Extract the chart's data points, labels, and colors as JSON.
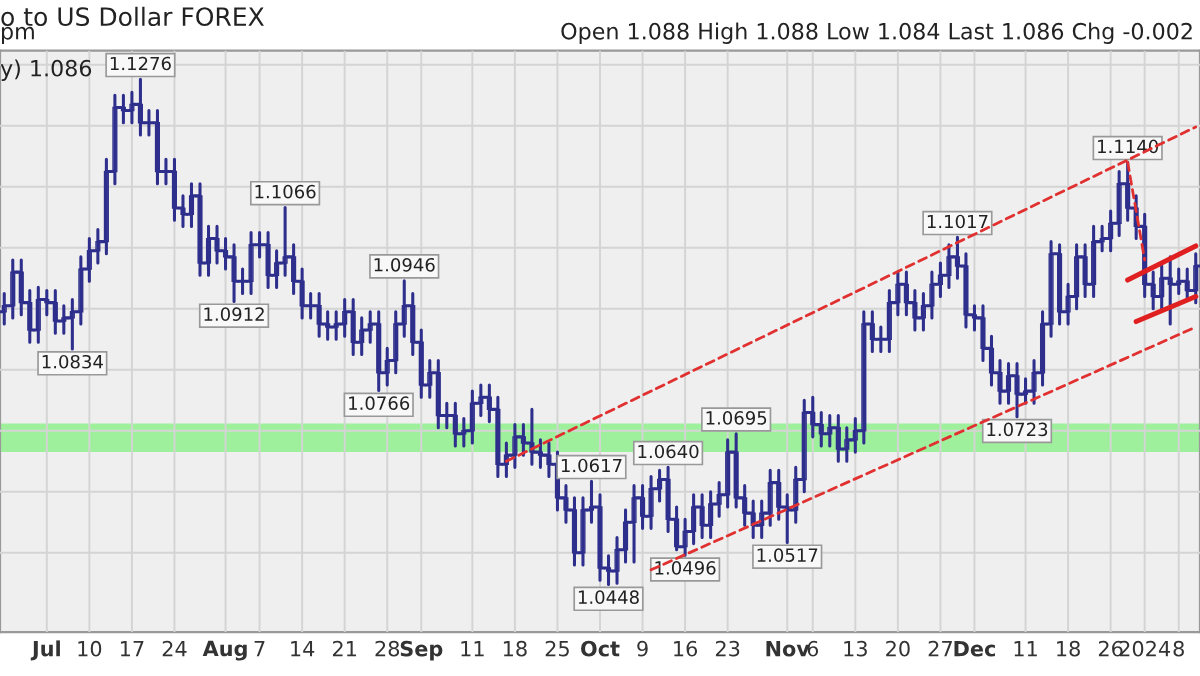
{
  "chart_data": {
    "type": "candlestick",
    "title": "o to US Dollar FOREX",
    "subtitle": "Open 1.088 High 1.088 Low 1.084 Last 1.086 Chg -0.002",
    "annotations": [
      "pm",
      "y) 1.086",
      {
        "text": "1.1276",
        "y": 1.1276
      },
      {
        "text": "1.0834",
        "y": 1.0834
      },
      {
        "text": "1.1066",
        "y": 1.1066
      },
      {
        "text": "1.0912",
        "y": 1.0912
      },
      {
        "text": "1.0946",
        "y": 1.0946
      },
      {
        "text": "1.0766",
        "y": 1.0766
      },
      {
        "text": "1.0617",
        "y": 1.0617
      },
      {
        "text": "1.0448",
        "y": 1.0448
      },
      {
        "text": "1.0640",
        "y": 1.064
      },
      {
        "text": "1.0496",
        "y": 1.0496
      },
      {
        "text": "1.0695",
        "y": 1.0695
      },
      {
        "text": "1.0517",
        "y": 1.0517
      },
      {
        "text": "1.1017",
        "y": 1.1017
      },
      {
        "text": "1.0723",
        "y": 1.0723
      },
      {
        "text": "1.1140",
        "y": 1.114
      }
    ],
    "color": "#2e2e8c",
    "categories": [
      null,
      null,
      null,
      null,
      null,
      "Jul",
      null,
      null,
      null,
      null,
      "10",
      null,
      null,
      null,
      null,
      "17",
      null,
      null,
      null,
      null,
      "24",
      null,
      null,
      null,
      null,
      null,
      "Aug",
      null,
      null,
      null,
      "7",
      null,
      null,
      null,
      null,
      "14",
      null,
      null,
      null,
      null,
      "21",
      null,
      null,
      null,
      null,
      "28",
      null,
      null,
      null,
      "Sep",
      null,
      null,
      null,
      null,
      null,
      "11",
      null,
      null,
      null,
      null,
      "18",
      null,
      null,
      null,
      null,
      "25",
      null,
      null,
      null,
      null,
      "Oct",
      null,
      null,
      null,
      null,
      "9",
      null,
      null,
      null,
      null,
      "16",
      null,
      null,
      null,
      null,
      "23",
      null,
      null,
      null,
      null,
      null,
      null,
      "Nov",
      null,
      null,
      "6",
      null,
      null,
      null,
      null,
      "13",
      null,
      null,
      null,
      null,
      "20",
      null,
      null,
      null,
      null,
      "27",
      null,
      null,
      null,
      "Dec",
      null,
      null,
      null,
      null,
      null,
      "11",
      null,
      null,
      null,
      null,
      "18",
      null,
      null,
      null,
      null,
      "26",
      null,
      null,
      null,
      "2024",
      null,
      null,
      null,
      "8",
      null,
      null
    ],
    "ohlc": [
      [
        1.0895,
        1.0925,
        1.0875,
        1.0905
      ],
      [
        1.0905,
        1.098,
        1.0885,
        1.096
      ],
      [
        1.096,
        1.098,
        1.089,
        1.091
      ],
      [
        1.091,
        1.093,
        1.0845,
        1.0865
      ],
      [
        1.0865,
        1.0935,
        1.0845,
        1.0915
      ],
      [
        1.0915,
        1.093,
        1.089,
        1.091
      ],
      [
        1.091,
        1.093,
        1.086,
        1.088
      ],
      [
        1.088,
        1.0905,
        1.086,
        1.0885
      ],
      [
        1.0885,
        1.0915,
        1.0834,
        1.0895
      ],
      [
        1.0895,
        1.0985,
        1.0875,
        1.0965
      ],
      [
        1.0965,
        1.1015,
        1.0945,
        1.0995
      ],
      [
        1.0995,
        1.103,
        1.0975,
        1.101
      ],
      [
        1.101,
        1.1145,
        1.099,
        1.1125
      ],
      [
        1.1125,
        1.125,
        1.1105,
        1.123
      ],
      [
        1.123,
        1.125,
        1.1205,
        1.1225
      ],
      [
        1.1225,
        1.1255,
        1.1205,
        1.1235
      ],
      [
        1.1235,
        1.1276,
        1.1185,
        1.1205
      ],
      [
        1.1205,
        1.1225,
        1.1185,
        1.1205
      ],
      [
        1.1205,
        1.1225,
        1.1105,
        1.1125
      ],
      [
        1.1125,
        1.1145,
        1.1105,
        1.1125
      ],
      [
        1.1125,
        1.1145,
        1.1045,
        1.1065
      ],
      [
        1.1065,
        1.1085,
        1.1035,
        1.1055
      ],
      [
        1.1055,
        1.1105,
        1.1035,
        1.1085
      ],
      [
        1.1085,
        1.1105,
        1.0955,
        1.0975
      ],
      [
        1.0975,
        1.1035,
        1.0955,
        1.1015
      ],
      [
        1.1015,
        1.1035,
        1.0975,
        1.0995
      ],
      [
        1.0995,
        1.1015,
        1.0965,
        1.0985
      ],
      [
        1.0985,
        1.1005,
        1.0912,
        1.0945
      ],
      [
        1.0945,
        1.0965,
        1.0925,
        1.0945
      ],
      [
        1.0945,
        1.1025,
        1.0925,
        1.1005
      ],
      [
        1.1005,
        1.1025,
        1.0985,
        1.1005
      ],
      [
        1.1005,
        1.1025,
        1.0935,
        1.0955
      ],
      [
        1.0955,
        1.0995,
        1.0935,
        1.0975
      ],
      [
        1.0975,
        1.1066,
        1.0955,
        1.0985
      ],
      [
        1.0985,
        1.1005,
        1.0925,
        1.0945
      ],
      [
        1.0945,
        1.0965,
        1.0885,
        1.0905
      ],
      [
        1.0905,
        1.0925,
        1.0885,
        1.0905
      ],
      [
        1.0905,
        1.0925,
        1.0855,
        1.0875
      ],
      [
        1.0875,
        1.0895,
        1.085,
        1.087
      ],
      [
        1.087,
        1.0895,
        1.085,
        1.0875
      ],
      [
        1.0875,
        1.0915,
        1.0855,
        1.0895
      ],
      [
        1.0895,
        1.0915,
        1.0825,
        1.0845
      ],
      [
        1.0845,
        1.0885,
        1.0825,
        1.0865
      ],
      [
        1.0865,
        1.0895,
        1.0845,
        1.0875
      ],
      [
        1.0875,
        1.0895,
        1.0766,
        1.0795
      ],
      [
        1.0795,
        1.0835,
        1.0775,
        1.0815
      ],
      [
        1.0815,
        1.0895,
        1.0795,
        1.0875
      ],
      [
        1.0875,
        1.0946,
        1.0855,
        1.0905
      ],
      [
        1.0905,
        1.0925,
        1.0825,
        1.0845
      ],
      [
        1.0845,
        1.0865,
        1.0755,
        1.0775
      ],
      [
        1.0775,
        1.0815,
        1.0755,
        1.0795
      ],
      [
        1.0795,
        1.0815,
        1.0705,
        1.0725
      ],
      [
        1.0725,
        1.0745,
        1.0705,
        1.0725
      ],
      [
        1.0725,
        1.0745,
        1.0675,
        1.0695
      ],
      [
        1.0695,
        1.072,
        1.0675,
        1.07
      ],
      [
        1.07,
        1.0765,
        1.068,
        1.0745
      ],
      [
        1.0745,
        1.0775,
        1.0725,
        1.0755
      ],
      [
        1.0755,
        1.0775,
        1.0715,
        1.0735
      ],
      [
        1.0735,
        1.0755,
        1.0625,
        1.0645
      ],
      [
        1.0645,
        1.068,
        1.0625,
        1.066
      ],
      [
        1.066,
        1.071,
        1.064,
        1.069
      ],
      [
        1.069,
        1.071,
        1.066,
        1.068
      ],
      [
        1.068,
        1.0735,
        1.0645,
        1.0665
      ],
      [
        1.0665,
        1.0685,
        1.064,
        1.066
      ],
      [
        1.066,
        1.068,
        1.0625,
        1.0645
      ],
      [
        1.0645,
        1.0665,
        1.057,
        1.059
      ],
      [
        1.059,
        1.061,
        1.055,
        1.057
      ],
      [
        1.057,
        1.059,
        1.048,
        1.05
      ],
      [
        1.05,
        1.059,
        1.048,
        1.057
      ],
      [
        1.057,
        1.0617,
        1.055,
        1.0575
      ],
      [
        1.0575,
        1.0595,
        1.0455,
        1.0475
      ],
      [
        1.0475,
        1.0495,
        1.0448,
        1.047
      ],
      [
        1.047,
        1.0525,
        1.045,
        1.0505
      ],
      [
        1.0505,
        1.057,
        1.0485,
        1.055
      ],
      [
        1.055,
        1.061,
        1.0485,
        1.059
      ],
      [
        1.059,
        1.061,
        1.054,
        1.056
      ],
      [
        1.056,
        1.0625,
        1.054,
        1.0605
      ],
      [
        1.0605,
        1.0635,
        1.0585,
        1.062
      ],
      [
        1.062,
        1.064,
        1.0535,
        1.0555
      ],
      [
        1.0555,
        1.0575,
        1.0505,
        1.051
      ],
      [
        1.051,
        1.0555,
        1.0496,
        1.0535
      ],
      [
        1.0535,
        1.0595,
        1.0515,
        1.0575
      ],
      [
        1.0575,
        1.0595,
        1.0525,
        1.0545
      ],
      [
        1.0545,
        1.06,
        1.0525,
        1.058
      ],
      [
        1.058,
        1.0615,
        1.056,
        1.0595
      ],
      [
        1.0595,
        1.0685,
        1.0575,
        1.0665
      ],
      [
        1.0665,
        1.0695,
        1.0575,
        1.059
      ],
      [
        1.059,
        1.061,
        1.0545,
        1.0565
      ],
      [
        1.0565,
        1.0585,
        1.0525,
        1.0545
      ],
      [
        1.0545,
        1.0585,
        1.0525,
        1.0565
      ],
      [
        1.0565,
        1.0635,
        1.0545,
        1.0615
      ],
      [
        1.0615,
        1.0635,
        1.0555,
        1.0575
      ],
      [
        1.0575,
        1.0595,
        1.0517,
        1.057
      ],
      [
        1.057,
        1.064,
        1.055,
        1.062
      ],
      [
        1.062,
        1.075,
        1.06,
        1.073
      ],
      [
        1.073,
        1.0755,
        1.069,
        1.071
      ],
      [
        1.071,
        1.073,
        1.0675,
        1.0695
      ],
      [
        1.0695,
        1.0725,
        1.0675,
        1.0705
      ],
      [
        1.0705,
        1.0725,
        1.065,
        1.067
      ],
      [
        1.067,
        1.0705,
        1.065,
        1.0685
      ],
      [
        1.0685,
        1.072,
        1.0665,
        1.07
      ],
      [
        1.07,
        1.0895,
        1.068,
        1.0875
      ],
      [
        1.0875,
        1.0895,
        1.083,
        1.085
      ],
      [
        1.085,
        1.087,
        1.083,
        1.085
      ],
      [
        1.085,
        1.093,
        1.083,
        1.091
      ],
      [
        1.091,
        1.096,
        1.089,
        1.094
      ],
      [
        1.094,
        1.096,
        1.089,
        1.091
      ],
      [
        1.091,
        1.093,
        1.0865,
        1.0885
      ],
      [
        1.0885,
        1.0925,
        1.0865,
        1.0905
      ],
      [
        1.0905,
        1.096,
        1.0885,
        1.094
      ],
      [
        1.094,
        1.0975,
        1.092,
        1.0955
      ],
      [
        1.0955,
        1.1005,
        1.0935,
        1.0985
      ],
      [
        1.0985,
        1.1017,
        1.095,
        1.097
      ],
      [
        1.097,
        1.099,
        1.087,
        1.089
      ],
      [
        1.089,
        1.0905,
        1.0865,
        1.0885
      ],
      [
        1.0885,
        1.0905,
        1.0815,
        1.0835
      ],
      [
        1.0835,
        1.0855,
        1.0775,
        1.0795
      ],
      [
        1.0795,
        1.0815,
        1.0745,
        1.0765
      ],
      [
        1.0765,
        1.081,
        1.0745,
        1.079
      ],
      [
        1.079,
        1.081,
        1.0723,
        1.076
      ],
      [
        1.076,
        1.0785,
        1.0745,
        1.0765
      ],
      [
        1.0765,
        1.0815,
        1.0745,
        1.0795
      ],
      [
        1.0795,
        1.0895,
        1.0775,
        1.0875
      ],
      [
        1.0875,
        1.101,
        1.0855,
        1.099
      ],
      [
        1.099,
        1.1005,
        1.0875,
        1.0895
      ],
      [
        1.0895,
        1.094,
        1.0875,
        1.092
      ],
      [
        1.092,
        1.1005,
        1.09,
        1.0985
      ],
      [
        1.0985,
        1.1005,
        1.092,
        1.094
      ],
      [
        1.094,
        1.1035,
        1.092,
        1.101
      ],
      [
        1.101,
        1.1035,
        1.0995,
        1.1015
      ],
      [
        1.1015,
        1.106,
        1.0995,
        1.104
      ],
      [
        1.104,
        1.1125,
        1.102,
        1.1105
      ],
      [
        1.1105,
        1.114,
        1.1045,
        1.1065
      ],
      [
        1.1065,
        1.1085,
        1.1015,
        1.1035
      ],
      [
        1.1035,
        1.1055,
        1.092,
        1.094
      ],
      [
        1.094,
        1.096,
        1.09,
        1.092
      ],
      [
        1.092,
        1.097,
        1.09,
        1.095
      ],
      [
        1.095,
        1.0985,
        1.0875,
        1.094
      ],
      [
        1.094,
        1.0965,
        1.0925,
        1.0945
      ],
      [
        1.0945,
        1.0965,
        1.0915,
        1.093
      ],
      [
        1.093,
        1.099,
        1.091,
        1.097
      ]
    ],
    "series": [
      {
        "type": "line",
        "color": "#e03030",
        "line_style": "dashed",
        "values": [
          null,
          null,
          null,
          null,
          null,
          null,
          null,
          null,
          null,
          null,
          null,
          null,
          null,
          null,
          null,
          null,
          null,
          null,
          null,
          null,
          null,
          null,
          null,
          null,
          null,
          null,
          null,
          null,
          null,
          null,
          null,
          null,
          null,
          null,
          null,
          null,
          null,
          null,
          null,
          null,
          null,
          null,
          null,
          null,
          null,
          null,
          null,
          null,
          null,
          null,
          null,
          null,
          null,
          null,
          null,
          null,
          null,
          null,
          null,
          1.065,
          null,
          null,
          null,
          null,
          null,
          null,
          null,
          null,
          null,
          null,
          null,
          null,
          null,
          null,
          null,
          null,
          null,
          null,
          null,
          null,
          null,
          null,
          null,
          null,
          null,
          null,
          null,
          null,
          null,
          null,
          null,
          null,
          null,
          null,
          null,
          null,
          null,
          null,
          null,
          null,
          null,
          null,
          null,
          null,
          null,
          null,
          null,
          null,
          null,
          null,
          null,
          null,
          null,
          null,
          null,
          null,
          null,
          null,
          null,
          null,
          null,
          null,
          null,
          null,
          null,
          null,
          null,
          null,
          null,
          null,
          null,
          null,
          null,
          null,
          null,
          null,
          null,
          null,
          null,
          null,
          1.1198
        ]
      },
      {
        "type": "line",
        "color": "#e03030",
        "line_style": "dashed",
        "values": [
          null,
          null,
          null,
          null,
          null,
          null,
          null,
          null,
          null,
          null,
          null,
          null,
          null,
          null,
          null,
          null,
          null,
          null,
          null,
          null,
          null,
          null,
          null,
          null,
          null,
          null,
          null,
          null,
          null,
          null,
          null,
          null,
          null,
          null,
          null,
          null,
          null,
          null,
          null,
          null,
          null,
          null,
          null,
          null,
          null,
          null,
          null,
          null,
          null,
          null,
          null,
          null,
          null,
          null,
          null,
          null,
          null,
          null,
          null,
          null,
          null,
          null,
          null,
          null,
          null,
          null,
          null,
          null,
          null,
          null,
          null,
          null,
          null,
          null,
          null,
          null,
          1.0472,
          null,
          null,
          null,
          null,
          null,
          null,
          null,
          null,
          null,
          null,
          null,
          null,
          null,
          null,
          null,
          null,
          null,
          null,
          null,
          null,
          null,
          null,
          null,
          null,
          null,
          null,
          null,
          null,
          null,
          null,
          null,
          null,
          null,
          null,
          null,
          null,
          null,
          null,
          null,
          null,
          null,
          null,
          null,
          null,
          null,
          null,
          null,
          null,
          null,
          null,
          null,
          null,
          null,
          null,
          null,
          null,
          null,
          null,
          null,
          null,
          null,
          null,
          null,
          1.087
        ]
      },
      {
        "type": "line",
        "color": "#e03030",
        "line_style": "dashed",
        "values": [
          null,
          null,
          null,
          null,
          null,
          null,
          null,
          null,
          null,
          null,
          null,
          null,
          null,
          null,
          null,
          null,
          null,
          null,
          null,
          null,
          null,
          null,
          null,
          null,
          null,
          null,
          null,
          null,
          null,
          null,
          null,
          null,
          null,
          null,
          null,
          null,
          null,
          null,
          null,
          null,
          null,
          null,
          null,
          null,
          null,
          null,
          null,
          null,
          null,
          null,
          null,
          null,
          null,
          null,
          null,
          null,
          null,
          null,
          null,
          null,
          null,
          null,
          null,
          null,
          null,
          null,
          null,
          null,
          null,
          null,
          null,
          null,
          null,
          null,
          null,
          null,
          null,
          null,
          null,
          null,
          null,
          null,
          null,
          null,
          null,
          null,
          null,
          null,
          null,
          null,
          null,
          null,
          null,
          null,
          null,
          null,
          null,
          null,
          null,
          null,
          null,
          null,
          null,
          null,
          null,
          null,
          null,
          null,
          null,
          null,
          null,
          null,
          null,
          null,
          null,
          null,
          null,
          null,
          null,
          null,
          null,
          null,
          null,
          null,
          null,
          null,
          null,
          null,
          null,
          null,
          null,
          null,
          1.114,
          null,
          1.098,
          null,
          null,
          null,
          null,
          null,
          null
        ]
      },
      {
        "type": "line",
        "color": "#e02020",
        "line_style": "solid",
        "values": [
          null,
          null,
          null,
          null,
          null,
          null,
          null,
          null,
          null,
          null,
          null,
          null,
          null,
          null,
          null,
          null,
          null,
          null,
          null,
          null,
          null,
          null,
          null,
          null,
          null,
          null,
          null,
          null,
          null,
          null,
          null,
          null,
          null,
          null,
          null,
          null,
          null,
          null,
          null,
          null,
          null,
          null,
          null,
          null,
          null,
          null,
          null,
          null,
          null,
          null,
          null,
          null,
          null,
          null,
          null,
          null,
          null,
          null,
          null,
          null,
          null,
          null,
          null,
          null,
          null,
          null,
          null,
          null,
          null,
          null,
          null,
          null,
          null,
          null,
          null,
          null,
          null,
          null,
          null,
          null,
          null,
          null,
          null,
          null,
          null,
          null,
          null,
          null,
          null,
          null,
          null,
          null,
          null,
          null,
          null,
          null,
          null,
          null,
          null,
          null,
          null,
          null,
          null,
          null,
          null,
          null,
          null,
          null,
          null,
          null,
          null,
          null,
          null,
          null,
          null,
          null,
          null,
          null,
          null,
          null,
          null,
          null,
          null,
          null,
          null,
          null,
          null,
          null,
          null,
          null,
          null,
          null,
          1.0947,
          null,
          null,
          null,
          null,
          null,
          null,
          null,
          1.1003
        ]
      },
      {
        "type": "line",
        "color": "#e02020",
        "line_style": "solid",
        "values": [
          null,
          null,
          null,
          null,
          null,
          null,
          null,
          null,
          null,
          null,
          null,
          null,
          null,
          null,
          null,
          null,
          null,
          null,
          null,
          null,
          null,
          null,
          null,
          null,
          null,
          null,
          null,
          null,
          null,
          null,
          null,
          null,
          null,
          null,
          null,
          null,
          null,
          null,
          null,
          null,
          null,
          null,
          null,
          null,
          null,
          null,
          null,
          null,
          null,
          null,
          null,
          null,
          null,
          null,
          null,
          null,
          null,
          null,
          null,
          null,
          null,
          null,
          null,
          null,
          null,
          null,
          null,
          null,
          null,
          null,
          null,
          null,
          null,
          null,
          null,
          null,
          null,
          null,
          null,
          null,
          null,
          null,
          null,
          null,
          null,
          null,
          null,
          null,
          null,
          null,
          null,
          null,
          null,
          null,
          null,
          null,
          null,
          null,
          null,
          null,
          null,
          null,
          null,
          null,
          null,
          null,
          null,
          null,
          null,
          null,
          null,
          null,
          null,
          null,
          null,
          null,
          null,
          null,
          null,
          null,
          null,
          null,
          null,
          null,
          null,
          null,
          null,
          null,
          null,
          null,
          null,
          null,
          null,
          1.0879,
          null,
          null,
          null,
          null,
          null,
          null,
          1.092
        ]
      }
    ],
    "bands": [
      {
        "axis": "y",
        "from": 1.0665,
        "to": 1.0712,
        "color": "#9ff09c"
      }
    ],
    "ylim": [
      1.037,
      1.1323
    ],
    "yticks": [
      {
        "value": 1.05,
        "label": null
      },
      {
        "value": 1.06,
        "label": null
      },
      {
        "value": 1.07,
        "label": null
      },
      {
        "value": 1.08,
        "label": null
      },
      {
        "value": 1.09,
        "label": null
      },
      {
        "value": 1.1,
        "label": null
      },
      {
        "value": 1.11,
        "label": null
      },
      {
        "value": 1.12,
        "label": null
      },
      {
        "value": 1.13,
        "label": null
      }
    ],
    "tick_labels": "x",
    "grid": true,
    "legend": false
  }
}
